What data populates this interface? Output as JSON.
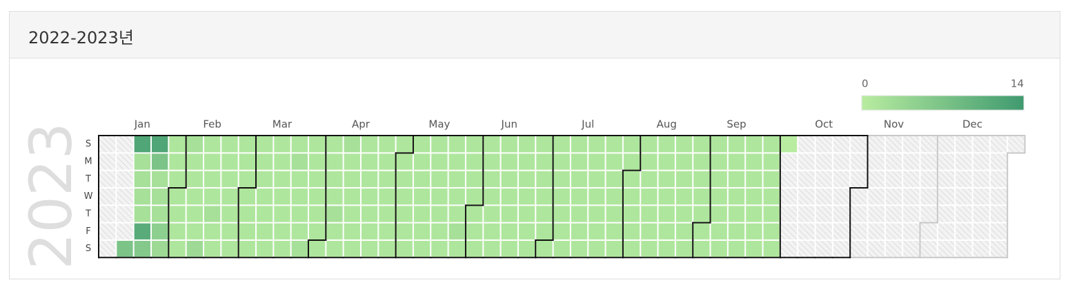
{
  "title": "2022-2023년",
  "calendar": {
    "year": "2023",
    "weekdays": [
      "S",
      "M",
      "T",
      "W",
      "T",
      "F",
      "S"
    ],
    "months": [
      "Jan",
      "Feb",
      "Mar",
      "Apr",
      "May",
      "Jun",
      "Jul",
      "Aug",
      "Sep",
      "Oct",
      "Nov",
      "Dec"
    ],
    "legend_min": 0,
    "legend_max": 14,
    "colors": {
      "low": "#b8eca0",
      "high": "#3f9a6f",
      "empty": "#f3f3f3",
      "hatch": "#dcdcdc"
    },
    "days": [
      null,
      null,
      null,
      null,
      null,
      null,
      null,
      null,
      null,
      null,
      null,
      null,
      null,
      7,
      12,
      2,
      2,
      2,
      2,
      11,
      6,
      12,
      7,
      2,
      2,
      2,
      5,
      3,
      1,
      1,
      1,
      1,
      1,
      1,
      1,
      2,
      1,
      1,
      1,
      1,
      1,
      3,
      1,
      1,
      1,
      1,
      2,
      1,
      1,
      1,
      1,
      1,
      1,
      1,
      1,
      1,
      1,
      1,
      1,
      1,
      1,
      1,
      1,
      1,
      1,
      1,
      1,
      1,
      1,
      1,
      1,
      1,
      1,
      1,
      1,
      1,
      1,
      1,
      2,
      1,
      1,
      1,
      1,
      2,
      1,
      1,
      1,
      1,
      1,
      1,
      1,
      1,
      1,
      1,
      1,
      2,
      1,
      1,
      2,
      1,
      1,
      1,
      1,
      1,
      1,
      1,
      1,
      1,
      1,
      1,
      1,
      1,
      1,
      1,
      1,
      1,
      1,
      1,
      1,
      1,
      1,
      1,
      1,
      1,
      1,
      1,
      1,
      1,
      1,
      1,
      1,
      1,
      1,
      1,
      1,
      1,
      1,
      1,
      1,
      1,
      1,
      1,
      1,
      1,
      1,
      2,
      1,
      1,
      1,
      1,
      1,
      1,
      1,
      1,
      1,
      1,
      1,
      1,
      1,
      1,
      1,
      1,
      1,
      1,
      1,
      1,
      1,
      1,
      1,
      1,
      1,
      1,
      1,
      1,
      1,
      1,
      1,
      1,
      1,
      1,
      1,
      1,
      1,
      1,
      1,
      1,
      1,
      1,
      1,
      1,
      1,
      1,
      1,
      1,
      1,
      1,
      1,
      1,
      1,
      1,
      1,
      1,
      1,
      1,
      1,
      1,
      1,
      1,
      1,
      1,
      1,
      1,
      1,
      1,
      1,
      1,
      1,
      1,
      1,
      1,
      1,
      1,
      1,
      1,
      1,
      1,
      1,
      1,
      1,
      1,
      1,
      1,
      1,
      1,
      1,
      1,
      1,
      1,
      1,
      1,
      1,
      1,
      1,
      1,
      1,
      1,
      1,
      1,
      1,
      1,
      1,
      1,
      1,
      1,
      1,
      1,
      1,
      1,
      1,
      1,
      1,
      1,
      1,
      1,
      1,
      1,
      1,
      1,
      1,
      1,
      1,
      1,
      1,
      0,
      null,
      null,
      null,
      null,
      null,
      null,
      null,
      null,
      null,
      null,
      null,
      null,
      null,
      null,
      null,
      null,
      null,
      null,
      null,
      null,
      null,
      null,
      null,
      null,
      null,
      null,
      null,
      null,
      null,
      null,
      null,
      null,
      null,
      null,
      null,
      null,
      null,
      null,
      null,
      null,
      null,
      null,
      null,
      null,
      null,
      null,
      null,
      null,
      null,
      null,
      null,
      null,
      null,
      null,
      null,
      null,
      null,
      null,
      null,
      null,
      null,
      null,
      null,
      null,
      null,
      null,
      null,
      null,
      null,
      null,
      null,
      null,
      null,
      null,
      null,
      null,
      null,
      null,
      null,
      null,
      null,
      null,
      null,
      null,
      null,
      null,
      null,
      null,
      null,
      null,
      null
    ]
  }
}
